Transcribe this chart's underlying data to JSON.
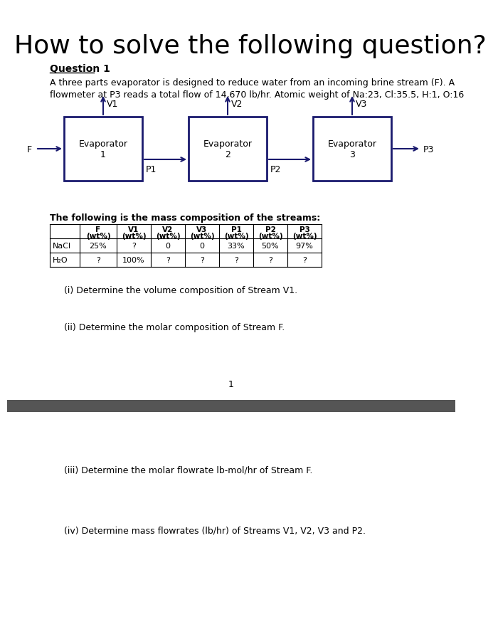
{
  "title": "How to solve the following question?",
  "title_fontsize": 26,
  "title_fontweight": "normal",
  "title_font": "sans-serif",
  "bg_color": "#ffffff",
  "question_label": "Question 1",
  "intro_text": "A three parts evaporator is designed to reduce water from an incoming brine stream (F). A\nflowmeter at P3 reads a total flow of 14,670 lb/hr. Atomic weight of Na:23, Cl:35.5, H:1, O:16",
  "evaporators": [
    "Evaporator\n1",
    "Evaporator\n2",
    "Evaporator\n3"
  ],
  "vapor_labels": [
    "V1",
    "V2",
    "V3"
  ],
  "process_labels": [
    "P1",
    "P2",
    "P3"
  ],
  "feed_label": "F",
  "table_title": "The following is the mass composition of the streams:",
  "table_col_headers": [
    "",
    "F\n(wt%)",
    "V1\n(wt%)",
    "V2\n(wt%)",
    "V3\n(wt%)",
    "P1\n(wt%)",
    "P2\n(wt%)",
    "P3\n(wt%)"
  ],
  "table_rows": [
    [
      "NaCl",
      "25%",
      "?",
      "0",
      "0",
      "33%",
      "50%",
      "97%"
    ],
    [
      "H₂O",
      "?",
      "100%",
      "?",
      "?",
      "?",
      "?",
      "?"
    ]
  ],
  "questions": [
    "(i) Determine the volume composition of Stream V1.",
    "(ii) Determine the molar composition of Stream F.",
    "(iii) Determine the molar flowrate lb-mol/hr of Stream F.",
    "(iv) Determine mass flowrates (lb/hr) of Streams V1, V2, V3 and P2."
  ],
  "page_number": "1",
  "divider_color": "#555555",
  "box_color": "#1a1a6e",
  "arrow_color": "#1a1a6e"
}
